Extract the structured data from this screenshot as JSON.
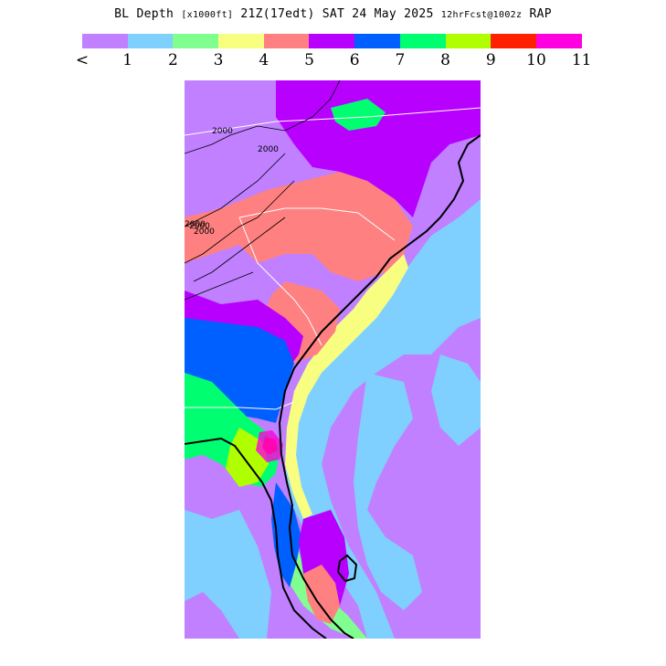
{
  "title": {
    "field": "BL Depth",
    "units": "[x1000ft]",
    "valid": "21Z(17edt) SAT 24 May 2025",
    "forecast": "12hrFcst@1002z",
    "model": "RAP"
  },
  "legend": {
    "colors": [
      "#c080ff",
      "#80d0ff",
      "#80ff90",
      "#f8ff80",
      "#ff8080",
      "#b800ff",
      "#0060ff",
      "#00ff70",
      "#b0ff00",
      "#ff2000",
      "#ff00e0"
    ],
    "labels": [
      "<",
      "1",
      "2",
      "3",
      "4",
      "5",
      "6",
      "7",
      "8",
      "9",
      "10",
      "11"
    ]
  },
  "map": {
    "contour_labels": [
      "2000",
      "2000",
      "2000",
      "2000",
      "2000"
    ]
  }
}
